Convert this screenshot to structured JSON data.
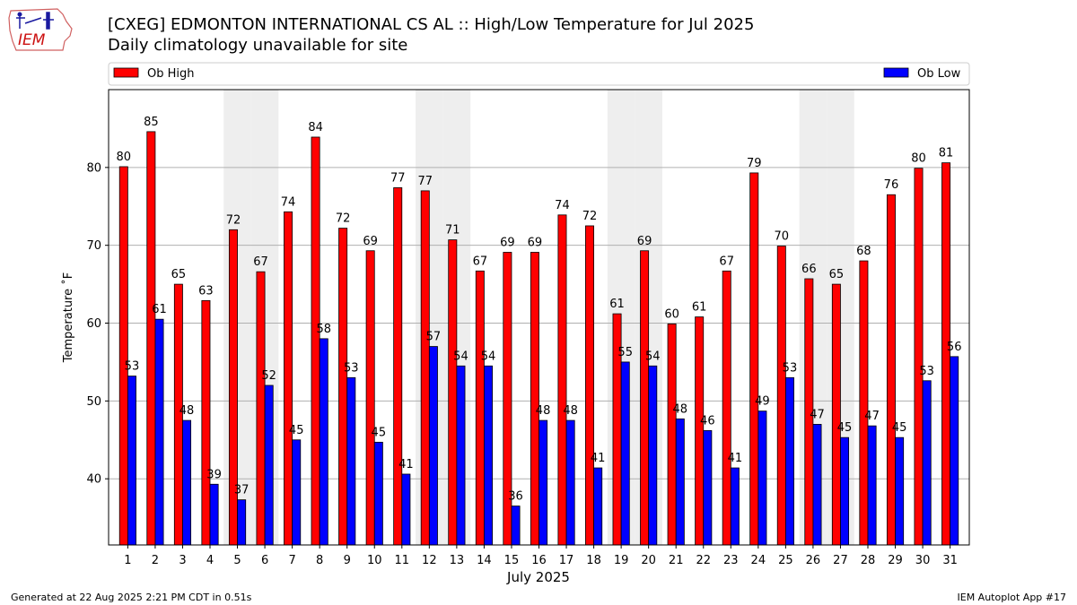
{
  "header": {
    "title": "[CXEG] EDMONTON INTERNATIONAL CS  AL :: High/Low Temperature for Jul 2025",
    "subtitle": "Daily climatology unavailable for site",
    "logo_text": "IEM"
  },
  "footer": {
    "generated": "Generated at 22 Aug 2025 2:21 PM CDT in 0.51s",
    "app": "IEM Autoplot App #17"
  },
  "chart_data": {
    "type": "bar",
    "xlabel": "July 2025",
    "ylabel": "Temperature ˚F",
    "ylim": [
      31.5,
      90
    ],
    "yticks": [
      40,
      50,
      60,
      70,
      80
    ],
    "legend_position": "top",
    "grid": true,
    "weekend_shading_days": [
      5,
      6,
      12,
      13,
      19,
      20,
      26,
      27
    ],
    "categories": [
      "1",
      "2",
      "3",
      "4",
      "5",
      "6",
      "7",
      "8",
      "9",
      "10",
      "11",
      "12",
      "13",
      "14",
      "15",
      "16",
      "17",
      "18",
      "19",
      "20",
      "21",
      "22",
      "23",
      "24",
      "25",
      "26",
      "27",
      "28",
      "29",
      "30",
      "31"
    ],
    "series": [
      {
        "name": "Ob High",
        "color": "#ff0000",
        "values": [
          80.1,
          84.6,
          65,
          62.9,
          72,
          66.6,
          74.3,
          83.9,
          72.2,
          69.3,
          77.4,
          77,
          70.7,
          66.7,
          69.1,
          69.1,
          73.9,
          72.5,
          61.2,
          69.3,
          59.9,
          60.8,
          66.7,
          79.3,
          69.9,
          65.7,
          65,
          68,
          76.5,
          79.9,
          80.6
        ],
        "labels": [
          "80",
          "85",
          "65",
          "63",
          "72",
          "67",
          "74",
          "84",
          "72",
          "69",
          "77",
          "77",
          "71",
          "67",
          "69",
          "69",
          "74",
          "72",
          "61",
          "69",
          "60",
          "61",
          "67",
          "79",
          "70",
          "66",
          "65",
          "68",
          "76",
          "80",
          "81"
        ]
      },
      {
        "name": "Ob Low",
        "color": "#0000ff",
        "values": [
          53.2,
          60.5,
          47.5,
          39.3,
          37.3,
          52,
          45,
          58,
          53,
          44.7,
          40.6,
          57,
          54.5,
          54.5,
          36.5,
          47.5,
          47.5,
          41.4,
          55,
          54.5,
          47.7,
          46.2,
          41.4,
          48.7,
          53,
          47,
          45.3,
          46.8,
          45.3,
          52.6,
          55.7
        ],
        "labels": [
          "53",
          "61",
          "48",
          "39",
          "37",
          "52",
          "45",
          "58",
          "53",
          "45",
          "41",
          "57",
          "54",
          "54",
          "36",
          "48",
          "48",
          "41",
          "55",
          "54",
          "48",
          "46",
          "41",
          "49",
          "53",
          "47",
          "45",
          "47",
          "45",
          "53",
          "56"
        ]
      }
    ]
  }
}
